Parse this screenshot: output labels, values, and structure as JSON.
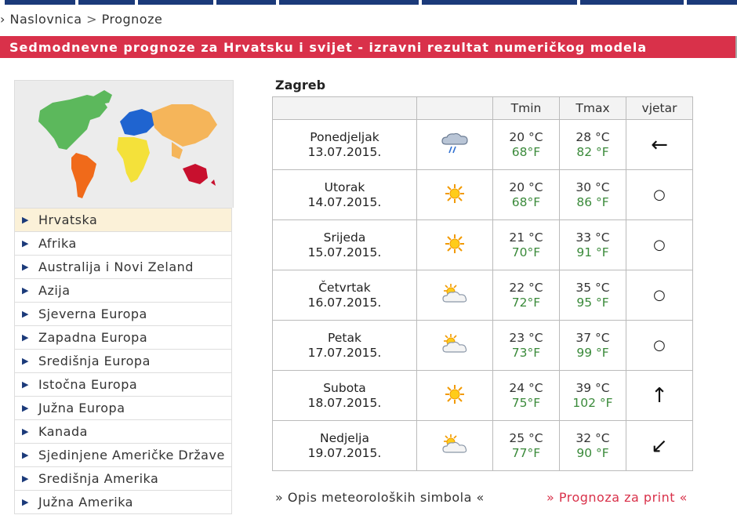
{
  "breadcrumb": {
    "prefix": "›",
    "home": "Naslovnica",
    "sep": ">",
    "current": "Prognoze"
  },
  "banner": {
    "title": "Sedmodnevne prognoze za Hrvatsku i svijet - izravni rezultat numeričkog modela"
  },
  "regions": [
    {
      "label": "Hrvatska",
      "active": true
    },
    {
      "label": "Afrika"
    },
    {
      "label": "Australija i Novi Zeland"
    },
    {
      "label": "Azija"
    },
    {
      "label": "Sjeverna Europa"
    },
    {
      "label": "Zapadna Europa"
    },
    {
      "label": "Središnja Europa"
    },
    {
      "label": "Istočna Europa"
    },
    {
      "label": "Južna Europa"
    },
    {
      "label": "Kanada"
    },
    {
      "label": "Sjedinjene Američke Države"
    },
    {
      "label": "Središnja Amerika"
    },
    {
      "label": "Južna Amerika"
    }
  ],
  "forecast": {
    "city": "Zagreb",
    "headers": {
      "tmin": "Tmin",
      "tmax": "Tmax",
      "wind": "vjetar"
    },
    "days": [
      {
        "name": "Ponedjeljak",
        "date": "13.07.2015.",
        "icon": "rain-cloud-icon",
        "tmin_c": "20 °C",
        "tmin_f": "68°F",
        "tmax_c": "28 °C",
        "tmax_f": "82 °F",
        "wind": "←"
      },
      {
        "name": "Utorak",
        "date": "14.07.2015.",
        "icon": "sun-icon",
        "tmin_c": "20 °C",
        "tmin_f": "68°F",
        "tmax_c": "30 °C",
        "tmax_f": "86 °F",
        "wind": "○"
      },
      {
        "name": "Srijeda",
        "date": "15.07.2015.",
        "icon": "sun-icon",
        "tmin_c": "21 °C",
        "tmin_f": "70°F",
        "tmax_c": "33 °C",
        "tmax_f": "91 °F",
        "wind": "○"
      },
      {
        "name": "Četvrtak",
        "date": "16.07.2015.",
        "icon": "partly-cloudy-icon",
        "tmin_c": "22 °C",
        "tmin_f": "72°F",
        "tmax_c": "35 °C",
        "tmax_f": "95 °F",
        "wind": "○"
      },
      {
        "name": "Petak",
        "date": "17.07.2015.",
        "icon": "partly-cloudy-icon",
        "tmin_c": "23 °C",
        "tmin_f": "73°F",
        "tmax_c": "37 °C",
        "tmax_f": "99 °F",
        "wind": "○"
      },
      {
        "name": "Subota",
        "date": "18.07.2015.",
        "icon": "sun-icon",
        "tmin_c": "24 °C",
        "tmin_f": "75°F",
        "tmax_c": "39 °C",
        "tmax_f": "102 °F",
        "wind": "↑"
      },
      {
        "name": "Nedjelja",
        "date": "19.07.2015.",
        "icon": "partly-cloudy-icon",
        "tmin_c": "25 °C",
        "tmin_f": "77°F",
        "tmax_c": "32 °C",
        "tmax_f": "90 °F",
        "wind": "↙"
      }
    ]
  },
  "links": {
    "symbols": "» Opis meteoroloških simbola «",
    "print": "» Prognoza za print «"
  },
  "colors": {
    "brand": "#d9314a",
    "nav": "#1b3a7a",
    "fahrenheit": "#3a8a3a"
  }
}
